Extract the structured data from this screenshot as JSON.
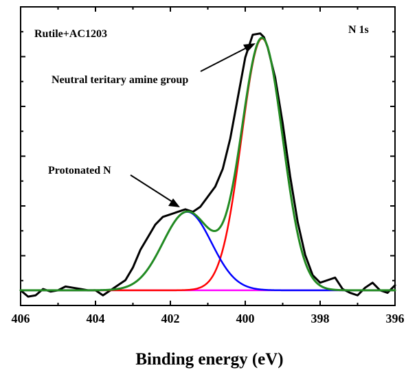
{
  "chart_data": {
    "type": "line",
    "title": "",
    "xlabel": "Binding energy (eV)",
    "ylabel": "",
    "xlim": [
      406,
      396
    ],
    "ylim": [
      -0.06,
      1.12
    ],
    "x_reversed": true,
    "grid": false,
    "x_ticks": [
      406,
      404,
      402,
      400,
      398,
      396
    ],
    "y_ticks_labels": false,
    "annotations": {
      "sample": "Rutile+AC1203",
      "region": "N 1s",
      "peak1_label": "Neutral teritary amine group",
      "peak2_label": "Protonated N"
    },
    "colors": {
      "raw": "#000000",
      "fit_total": "#228b22",
      "peak_amine": "#ff0000",
      "peak_protonated": "#0000ff",
      "background": "#ff00ff"
    },
    "series": [
      {
        "name": "",
        "color": "#000000",
        "kind": "raw",
        "x": [
          406.0,
          405.8,
          405.6,
          405.4,
          405.2,
          405.0,
          404.8,
          404.6,
          404.4,
          404.2,
          404.0,
          403.8,
          403.6,
          403.4,
          403.2,
          403.0,
          402.8,
          402.6,
          402.4,
          402.2,
          402.0,
          401.8,
          401.6,
          401.4,
          401.2,
          401.0,
          400.8,
          400.6,
          400.4,
          400.2,
          400.0,
          399.8,
          399.6,
          399.5,
          399.4,
          399.2,
          399.0,
          398.8,
          398.6,
          398.4,
          398.2,
          398.0,
          397.8,
          397.6,
          397.4,
          397.2,
          397.0,
          396.8,
          396.6,
          396.4,
          396.2,
          396.0
        ],
        "y": [
          0.0,
          -0.025,
          -0.02,
          0.005,
          -0.005,
          0.0,
          0.015,
          0.01,
          0.005,
          0.0,
          0.0,
          -0.02,
          0.0,
          0.02,
          0.04,
          0.09,
          0.16,
          0.21,
          0.26,
          0.29,
          0.3,
          0.31,
          0.32,
          0.31,
          0.33,
          0.37,
          0.41,
          0.48,
          0.6,
          0.76,
          0.92,
          1.01,
          1.015,
          1.0,
          0.96,
          0.84,
          0.66,
          0.45,
          0.27,
          0.14,
          0.06,
          0.03,
          0.04,
          0.05,
          0.005,
          -0.01,
          -0.02,
          0.01,
          0.03,
          0.0,
          -0.01,
          0.02
        ]
      },
      {
        "name": "",
        "color": "#ff0000",
        "kind": "peak",
        "center": 399.55,
        "amplitude": 0.995,
        "sigma": 0.55
      },
      {
        "name": "",
        "color": "#0000ff",
        "kind": "peak",
        "center": 401.55,
        "amplitude": 0.31,
        "sigma": 0.65
      },
      {
        "name": "",
        "color": "#228b22",
        "kind": "sum"
      },
      {
        "name": "",
        "color": "#ff00ff",
        "kind": "baseline",
        "value": 0.0
      }
    ]
  }
}
